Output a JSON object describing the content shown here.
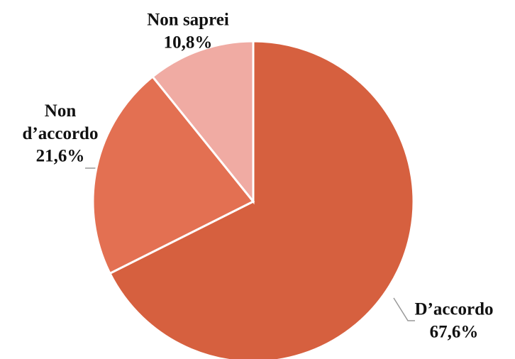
{
  "chart_data": {
    "type": "pie",
    "categories": [
      "D’accordo",
      "Non d’accordo",
      "Non saprei"
    ],
    "values": [
      67.6,
      21.6,
      10.8
    ],
    "value_labels": [
      "67,6%",
      "21,6%",
      "10,8%"
    ],
    "colors": [
      "#d6603f",
      "#e37052",
      "#f0aba3"
    ]
  }
}
